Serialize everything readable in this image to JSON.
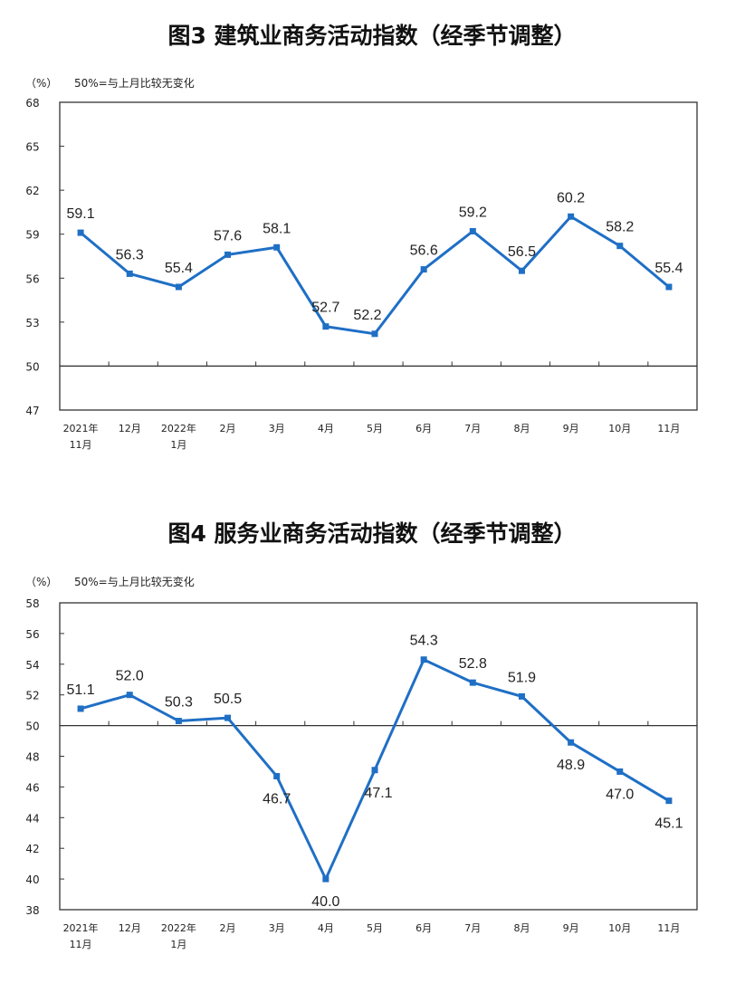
{
  "chart_data": [
    {
      "type": "line",
      "title": "图3  建筑业商务活动指数（经季节调整）",
      "unit_label": "（%）",
      "note": "50%=与上月比较无变化",
      "categories": [
        [
          "2021年",
          "11月"
        ],
        [
          "12月"
        ],
        [
          "2022年",
          "1月"
        ],
        [
          "2月"
        ],
        [
          "3月"
        ],
        [
          "4月"
        ],
        [
          "5月"
        ],
        [
          "6月"
        ],
        [
          "7月"
        ],
        [
          "8月"
        ],
        [
          "9月"
        ],
        [
          "10月"
        ],
        [
          "11月"
        ]
      ],
      "values": [
        59.1,
        56.3,
        55.4,
        57.6,
        58.1,
        52.7,
        52.2,
        56.6,
        59.2,
        56.5,
        60.2,
        58.2,
        55.4
      ],
      "labels": [
        "59.1",
        "56.3",
        "55.4",
        "57.6",
        "58.1",
        "52.7",
        "52.2",
        "56.6",
        "59.2",
        "56.5",
        "60.2",
        "58.2",
        "55.4"
      ],
      "ylim": [
        47,
        68
      ],
      "yticks": [
        "47",
        "50",
        "53",
        "56",
        "59",
        "62",
        "65",
        "68"
      ],
      "reference_line": 50,
      "series_color": "#1f6fc5",
      "grid": false
    },
    {
      "type": "line",
      "title": "图4  服务业商务活动指数（经季节调整）",
      "unit_label": "（%）",
      "note": "50%=与上月比较无变化",
      "categories": [
        [
          "2021年",
          "11月"
        ],
        [
          "12月"
        ],
        [
          "2022年",
          "1月"
        ],
        [
          "2月"
        ],
        [
          "3月"
        ],
        [
          "4月"
        ],
        [
          "5月"
        ],
        [
          "6月"
        ],
        [
          "7月"
        ],
        [
          "8月"
        ],
        [
          "9月"
        ],
        [
          "10月"
        ],
        [
          "11月"
        ]
      ],
      "values": [
        51.1,
        52.0,
        50.3,
        50.5,
        46.7,
        40.0,
        47.1,
        54.3,
        52.8,
        51.9,
        48.9,
        47.0,
        45.1
      ],
      "labels": [
        "51.1",
        "52.0",
        "50.3",
        "50.5",
        "46.7",
        "40.0",
        "47.1",
        "54.3",
        "52.8",
        "51.9",
        "48.9",
        "47.0",
        "45.1"
      ],
      "ylim": [
        38,
        58
      ],
      "yticks": [
        "38",
        "40",
        "42",
        "44",
        "46",
        "48",
        "50",
        "52",
        "54",
        "56",
        "58"
      ],
      "reference_line": 50,
      "series_color": "#1f6fc5",
      "grid": false
    }
  ]
}
